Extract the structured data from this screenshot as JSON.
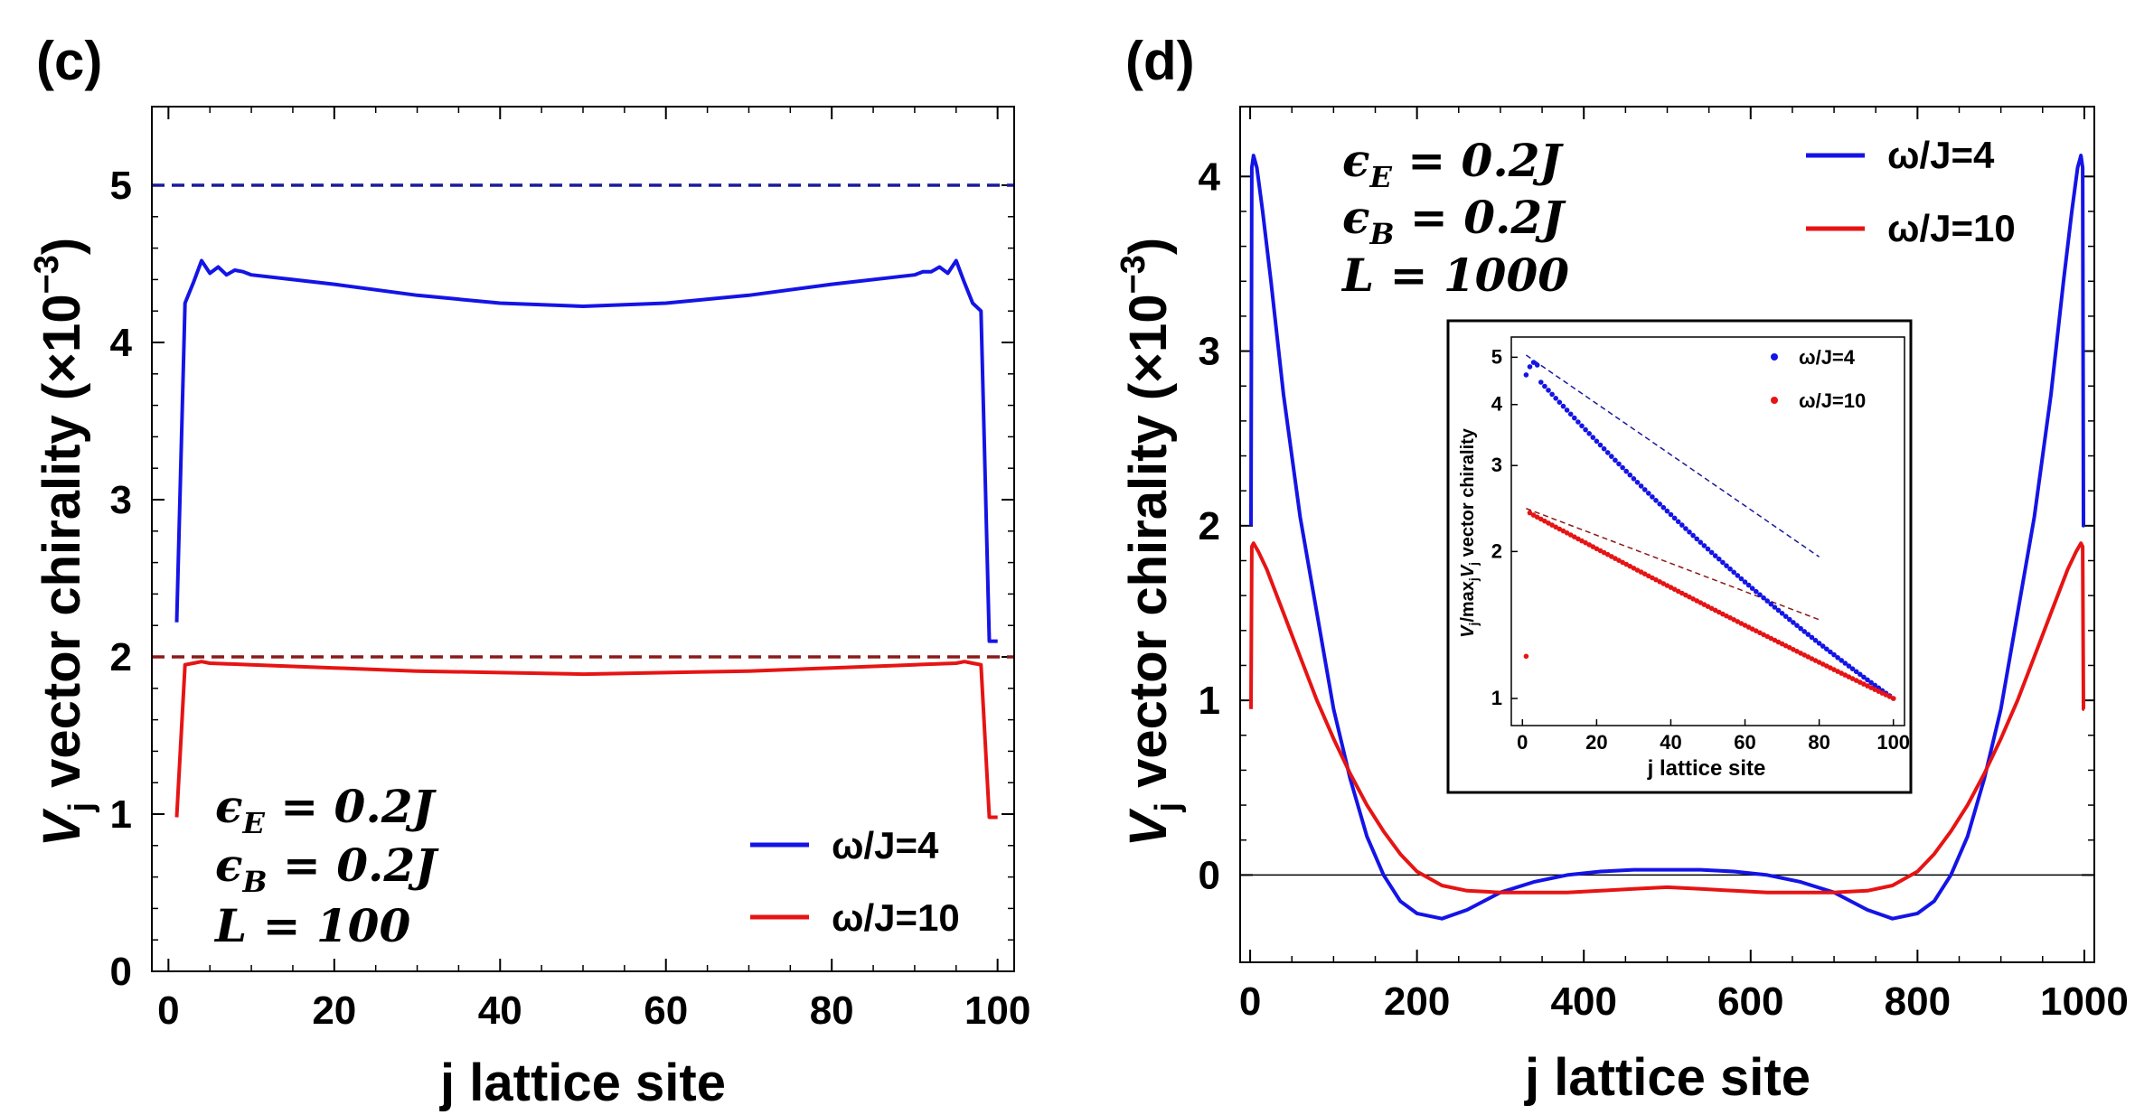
{
  "chart_data": [
    {
      "id": "c",
      "type": "line",
      "panel_label": "(c)",
      "xlabel": "j lattice site",
      "ylabel_main": "V",
      "ylabel_sub": "j",
      "ylabel_rest": " vector chirality (×10",
      "ylabel_exp": "−3",
      "ylabel_close": ")",
      "xlim": [
        -2,
        102
      ],
      "ylim": [
        0,
        5.5
      ],
      "xticks": [
        0,
        20,
        40,
        60,
        80,
        100
      ],
      "yticks": [
        0,
        1,
        2,
        3,
        4,
        5
      ],
      "annotations": [
        {
          "sym": "ϵ",
          "sub": "E",
          "rest": " = 0.2J"
        },
        {
          "sym": "ϵ",
          "sub": "B",
          "rest": " = 0.2J"
        },
        {
          "sym": "L",
          "sub": "",
          "rest": " = 100"
        }
      ],
      "legend_position": "bottom-right",
      "reference_lines": [
        {
          "name": "ω/J=4 asymptote",
          "y": 5.0,
          "color": "#1a1a9c",
          "dash": true
        },
        {
          "name": "ω/J=10 asymptote",
          "y": 2.0,
          "color": "#8b1a1a",
          "dash": true
        }
      ],
      "series": [
        {
          "name": "ω/J=4",
          "color": "#1414e6",
          "x": [
            1,
            2,
            3,
            4,
            5,
            6,
            7,
            8,
            9,
            10,
            15,
            20,
            30,
            40,
            50,
            60,
            70,
            80,
            90,
            91,
            92,
            93,
            94,
            95,
            96,
            97,
            98,
            99,
            100
          ],
          "y": [
            2.22,
            4.25,
            4.38,
            4.52,
            4.44,
            4.48,
            4.43,
            4.46,
            4.45,
            4.43,
            4.4,
            4.37,
            4.3,
            4.25,
            4.23,
            4.25,
            4.3,
            4.37,
            4.43,
            4.45,
            4.45,
            4.48,
            4.44,
            4.52,
            4.38,
            4.25,
            4.2,
            2.1,
            2.1
          ]
        },
        {
          "name": "ω/J=10",
          "color": "#e61414",
          "x": [
            1,
            2,
            3,
            4,
            5,
            10,
            20,
            30,
            40,
            50,
            60,
            70,
            80,
            90,
            95,
            96,
            97,
            98,
            99,
            100
          ],
          "y": [
            0.98,
            1.95,
            1.96,
            1.97,
            1.96,
            1.95,
            1.93,
            1.91,
            1.9,
            1.89,
            1.9,
            1.91,
            1.93,
            1.95,
            1.96,
            1.97,
            1.96,
            1.95,
            0.98,
            0.98
          ]
        }
      ]
    },
    {
      "id": "d",
      "type": "line",
      "panel_label": "(d)",
      "xlabel": "j lattice site",
      "ylabel_main": "V",
      "ylabel_sub": "j",
      "ylabel_rest": " vector chirality (×10",
      "ylabel_exp": "−3",
      "ylabel_close": ")",
      "xlim": [
        -12,
        1012
      ],
      "ylim": [
        -0.5,
        4.4
      ],
      "xticks": [
        0,
        200,
        400,
        600,
        800,
        1000
      ],
      "yticks": [
        0,
        1,
        2,
        3,
        4
      ],
      "annotations": [
        {
          "sym": "ϵ",
          "sub": "E",
          "rest": " = 0.2J"
        },
        {
          "sym": "ϵ",
          "sub": "B",
          "rest": " = 0.2J"
        },
        {
          "sym": "L",
          "sub": "",
          "rest": " = 1000"
        }
      ],
      "legend_position": "top-right",
      "zero_line": true,
      "series": [
        {
          "name": "ω/J=4",
          "color": "#1414e6",
          "x": [
            1,
            2,
            4,
            8,
            15,
            25,
            40,
            60,
            80,
            100,
            120,
            140,
            160,
            180,
            200,
            230,
            260,
            300,
            340,
            380,
            420,
            460,
            500,
            540,
            580,
            620,
            660,
            700,
            740,
            770,
            800,
            820,
            840,
            860,
            880,
            900,
            920,
            940,
            960,
            975,
            985,
            992,
            996,
            998,
            999,
            1000
          ],
          "y": [
            2.0,
            4.05,
            4.12,
            4.05,
            3.8,
            3.4,
            2.75,
            2.05,
            1.5,
            0.95,
            0.55,
            0.22,
            0.0,
            -0.15,
            -0.22,
            -0.25,
            -0.2,
            -0.1,
            -0.04,
            0.0,
            0.02,
            0.03,
            0.03,
            0.03,
            0.02,
            0.0,
            -0.04,
            -0.1,
            -0.2,
            -0.25,
            -0.22,
            -0.15,
            0.0,
            0.22,
            0.55,
            0.95,
            1.5,
            2.05,
            2.75,
            3.4,
            3.8,
            4.05,
            4.12,
            4.05,
            2.0,
            2.0
          ]
        },
        {
          "name": "ω/J=10",
          "color": "#e61414",
          "x": [
            1,
            2,
            4,
            10,
            20,
            40,
            60,
            80,
            100,
            120,
            140,
            160,
            180,
            200,
            230,
            260,
            300,
            340,
            380,
            420,
            460,
            500,
            540,
            580,
            620,
            660,
            700,
            740,
            770,
            800,
            820,
            840,
            860,
            880,
            900,
            920,
            940,
            960,
            980,
            990,
            996,
            998,
            999,
            1000
          ],
          "y": [
            0.95,
            1.88,
            1.9,
            1.85,
            1.75,
            1.5,
            1.25,
            1.0,
            0.78,
            0.58,
            0.4,
            0.25,
            0.12,
            0.02,
            -0.06,
            -0.09,
            -0.1,
            -0.1,
            -0.1,
            -0.09,
            -0.08,
            -0.07,
            -0.08,
            -0.09,
            -0.1,
            -0.1,
            -0.1,
            -0.09,
            -0.06,
            0.02,
            0.12,
            0.25,
            0.4,
            0.58,
            0.78,
            1.0,
            1.25,
            1.5,
            1.75,
            1.85,
            1.9,
            1.88,
            0.95,
            0.95
          ]
        }
      ],
      "inset": {
        "type": "scatter",
        "xlabel": "j lattice site",
        "ylabel_main": "V",
        "ylabel_sub": "j",
        "ylabel_mid": "/max",
        "ylabel_sub2": "j",
        "ylabel_v2": "V",
        "ylabel_sub3": "j",
        "ylabel_rest": " vector chirality",
        "xlim": [
          -3,
          103
        ],
        "ylim": [
          0.88,
          5.5
        ],
        "yscale": "log",
        "xticks": [
          0,
          20,
          40,
          60,
          80,
          100
        ],
        "yticks": [
          1,
          2,
          3,
          4,
          5
        ],
        "legend_position": "top-right",
        "series": [
          {
            "name": "ω/J=4",
            "color": "#1414e6",
            "formula": "scatter_blue",
            "outliers": [
              {
                "x": 1,
                "y": 4.6
              },
              {
                "x": 2,
                "y": 4.78
              },
              {
                "x": 3,
                "y": 4.88
              },
              {
                "x": 4,
                "y": 4.82
              }
            ]
          },
          {
            "name": "ω/J=10",
            "color": "#e61414",
            "formula": "scatter_red",
            "outliers": [
              {
                "x": 1,
                "y": 1.22
              },
              {
                "x": 2,
                "y": 2.4
              }
            ]
          }
        ],
        "fit_lines": [
          {
            "name": "ω/J=4 fit",
            "color": "#1a1a9c",
            "x": [
              1,
              80
            ],
            "y": [
              5.05,
              1.95
            ]
          },
          {
            "name": "ω/J=10 fit",
            "color": "#8b1a1a",
            "x": [
              1,
              80
            ],
            "y": [
              2.45,
              1.45
            ]
          }
        ]
      }
    }
  ]
}
